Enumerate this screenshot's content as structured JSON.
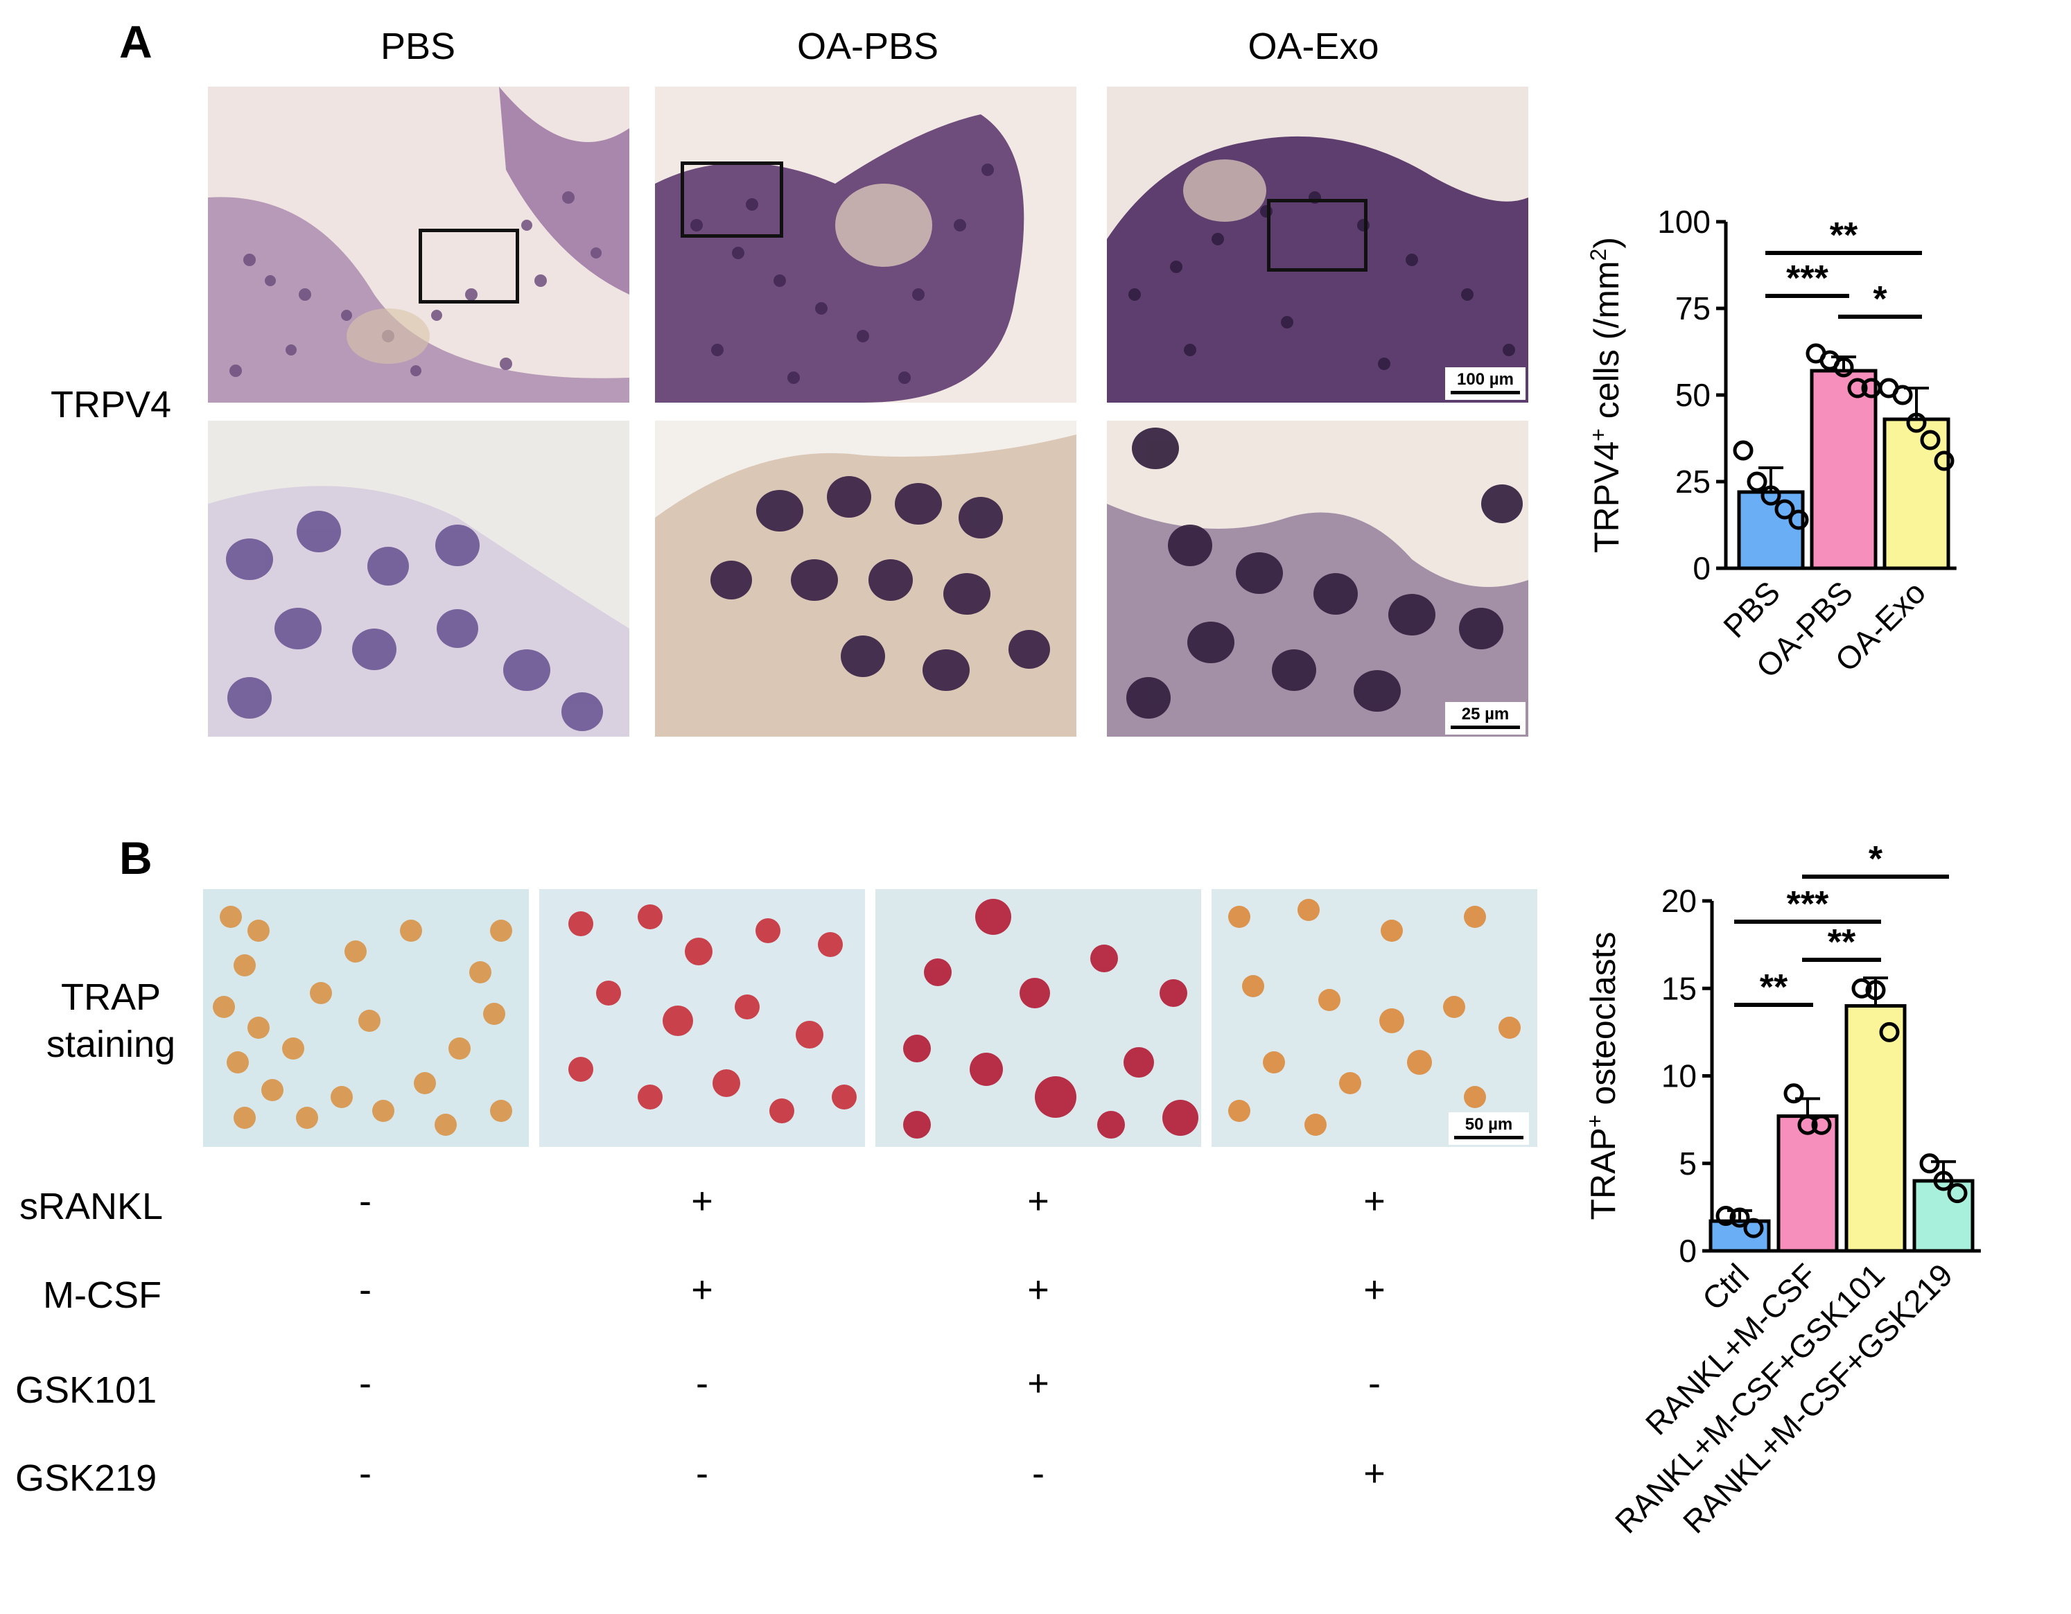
{
  "panel_a": {
    "letter": "A",
    "columns": [
      "PBS",
      "OA-PBS",
      "OA-Exo"
    ],
    "row_label": "TRPV4",
    "scale_top": "100 µm",
    "scale_bottom": "25 µm"
  },
  "panel_b": {
    "letter": "B",
    "row_label_line1": "TRAP",
    "row_label_line2": "staining",
    "scale": "50 µm",
    "conditions": [
      {
        "label": "sRANKL",
        "signs": [
          "-",
          "+",
          "+",
          "+"
        ]
      },
      {
        "label": "M-CSF",
        "signs": [
          "-",
          "+",
          "+",
          "+"
        ]
      },
      {
        "label": "GSK101",
        "signs": [
          "-",
          "-",
          "+",
          "-"
        ]
      },
      {
        "label": "GSK219",
        "signs": [
          "-",
          "-",
          "-",
          "+"
        ]
      }
    ]
  },
  "chart_data": [
    {
      "type": "bar",
      "ylabel": "TRPV4+ cells (/mm2)",
      "ylabel_main": "TRPV4",
      "ylabel_sup": "+",
      "ylabel_mid": " cells (/mm",
      "ylabel_sup2": "2",
      "ylabel_end": ")",
      "ylim": [
        0,
        100
      ],
      "yticks": [
        0,
        25,
        50,
        75,
        100
      ],
      "categories": [
        "PBS",
        "OA-PBS",
        "OA-Exo"
      ],
      "values": [
        22,
        57,
        43
      ],
      "errors": [
        7,
        4,
        9
      ],
      "colors": [
        "#6aaef5",
        "#f78fbd",
        "#fbf59a"
      ],
      "points": [
        [
          34,
          25,
          21,
          17,
          14
        ],
        [
          62,
          60,
          58,
          52,
          52
        ],
        [
          52,
          50,
          42,
          37,
          31
        ]
      ],
      "significance": [
        {
          "from": 0,
          "to": 2,
          "label": "**"
        },
        {
          "from": 0,
          "to": 1,
          "label": "***"
        },
        {
          "from": 1,
          "to": 2,
          "label": "*"
        }
      ]
    },
    {
      "type": "bar",
      "ylabel": "TRAP+ osteoclasts",
      "ylabel_main": "TRAP",
      "ylabel_sup": "+",
      "ylabel_mid": " osteoclasts",
      "ylim": [
        0,
        20
      ],
      "yticks": [
        0,
        5,
        10,
        15,
        20
      ],
      "categories": [
        "Ctrl",
        "RANKL+M-CSF",
        "RANKL+M-CSF+GSK101",
        "RANKL+M-CSF+GSK219"
      ],
      "values": [
        1.7,
        7.7,
        14.0,
        4.0
      ],
      "errors": [
        0.6,
        1.0,
        1.6,
        1.1
      ],
      "colors": [
        "#6aaef5",
        "#f78fbd",
        "#fbf59a",
        "#a9f0dc"
      ],
      "points": [
        [
          2.0,
          1.9,
          1.3
        ],
        [
          9.0,
          7.2,
          7.2
        ],
        [
          15.0,
          14.9,
          12.5
        ],
        [
          5.0,
          4.0,
          3.3
        ]
      ],
      "significance": [
        {
          "from": 1,
          "to": 3,
          "label": "*"
        },
        {
          "from": 0,
          "to": 2,
          "label": "***"
        },
        {
          "from": 1,
          "to": 2,
          "label": "**"
        },
        {
          "from": 0,
          "to": 1,
          "label": "**"
        }
      ]
    }
  ]
}
